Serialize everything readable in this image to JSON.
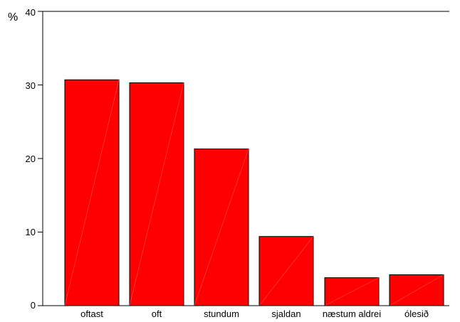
{
  "chart_data": {
    "type": "bar",
    "ylabel": "%",
    "ylim": [
      0,
      40
    ],
    "yticks": [
      "0",
      "10",
      "20",
      "30",
      "40"
    ],
    "categories": [
      "oftast",
      "oft",
      "stundum",
      "sjaldan",
      "næstum aldrei",
      "ólesið"
    ],
    "values": [
      30.7,
      30.3,
      21.3,
      9.4,
      3.8,
      4.2
    ],
    "grid": false,
    "bar_color": "#FF0000",
    "axis_color": "#000000"
  }
}
